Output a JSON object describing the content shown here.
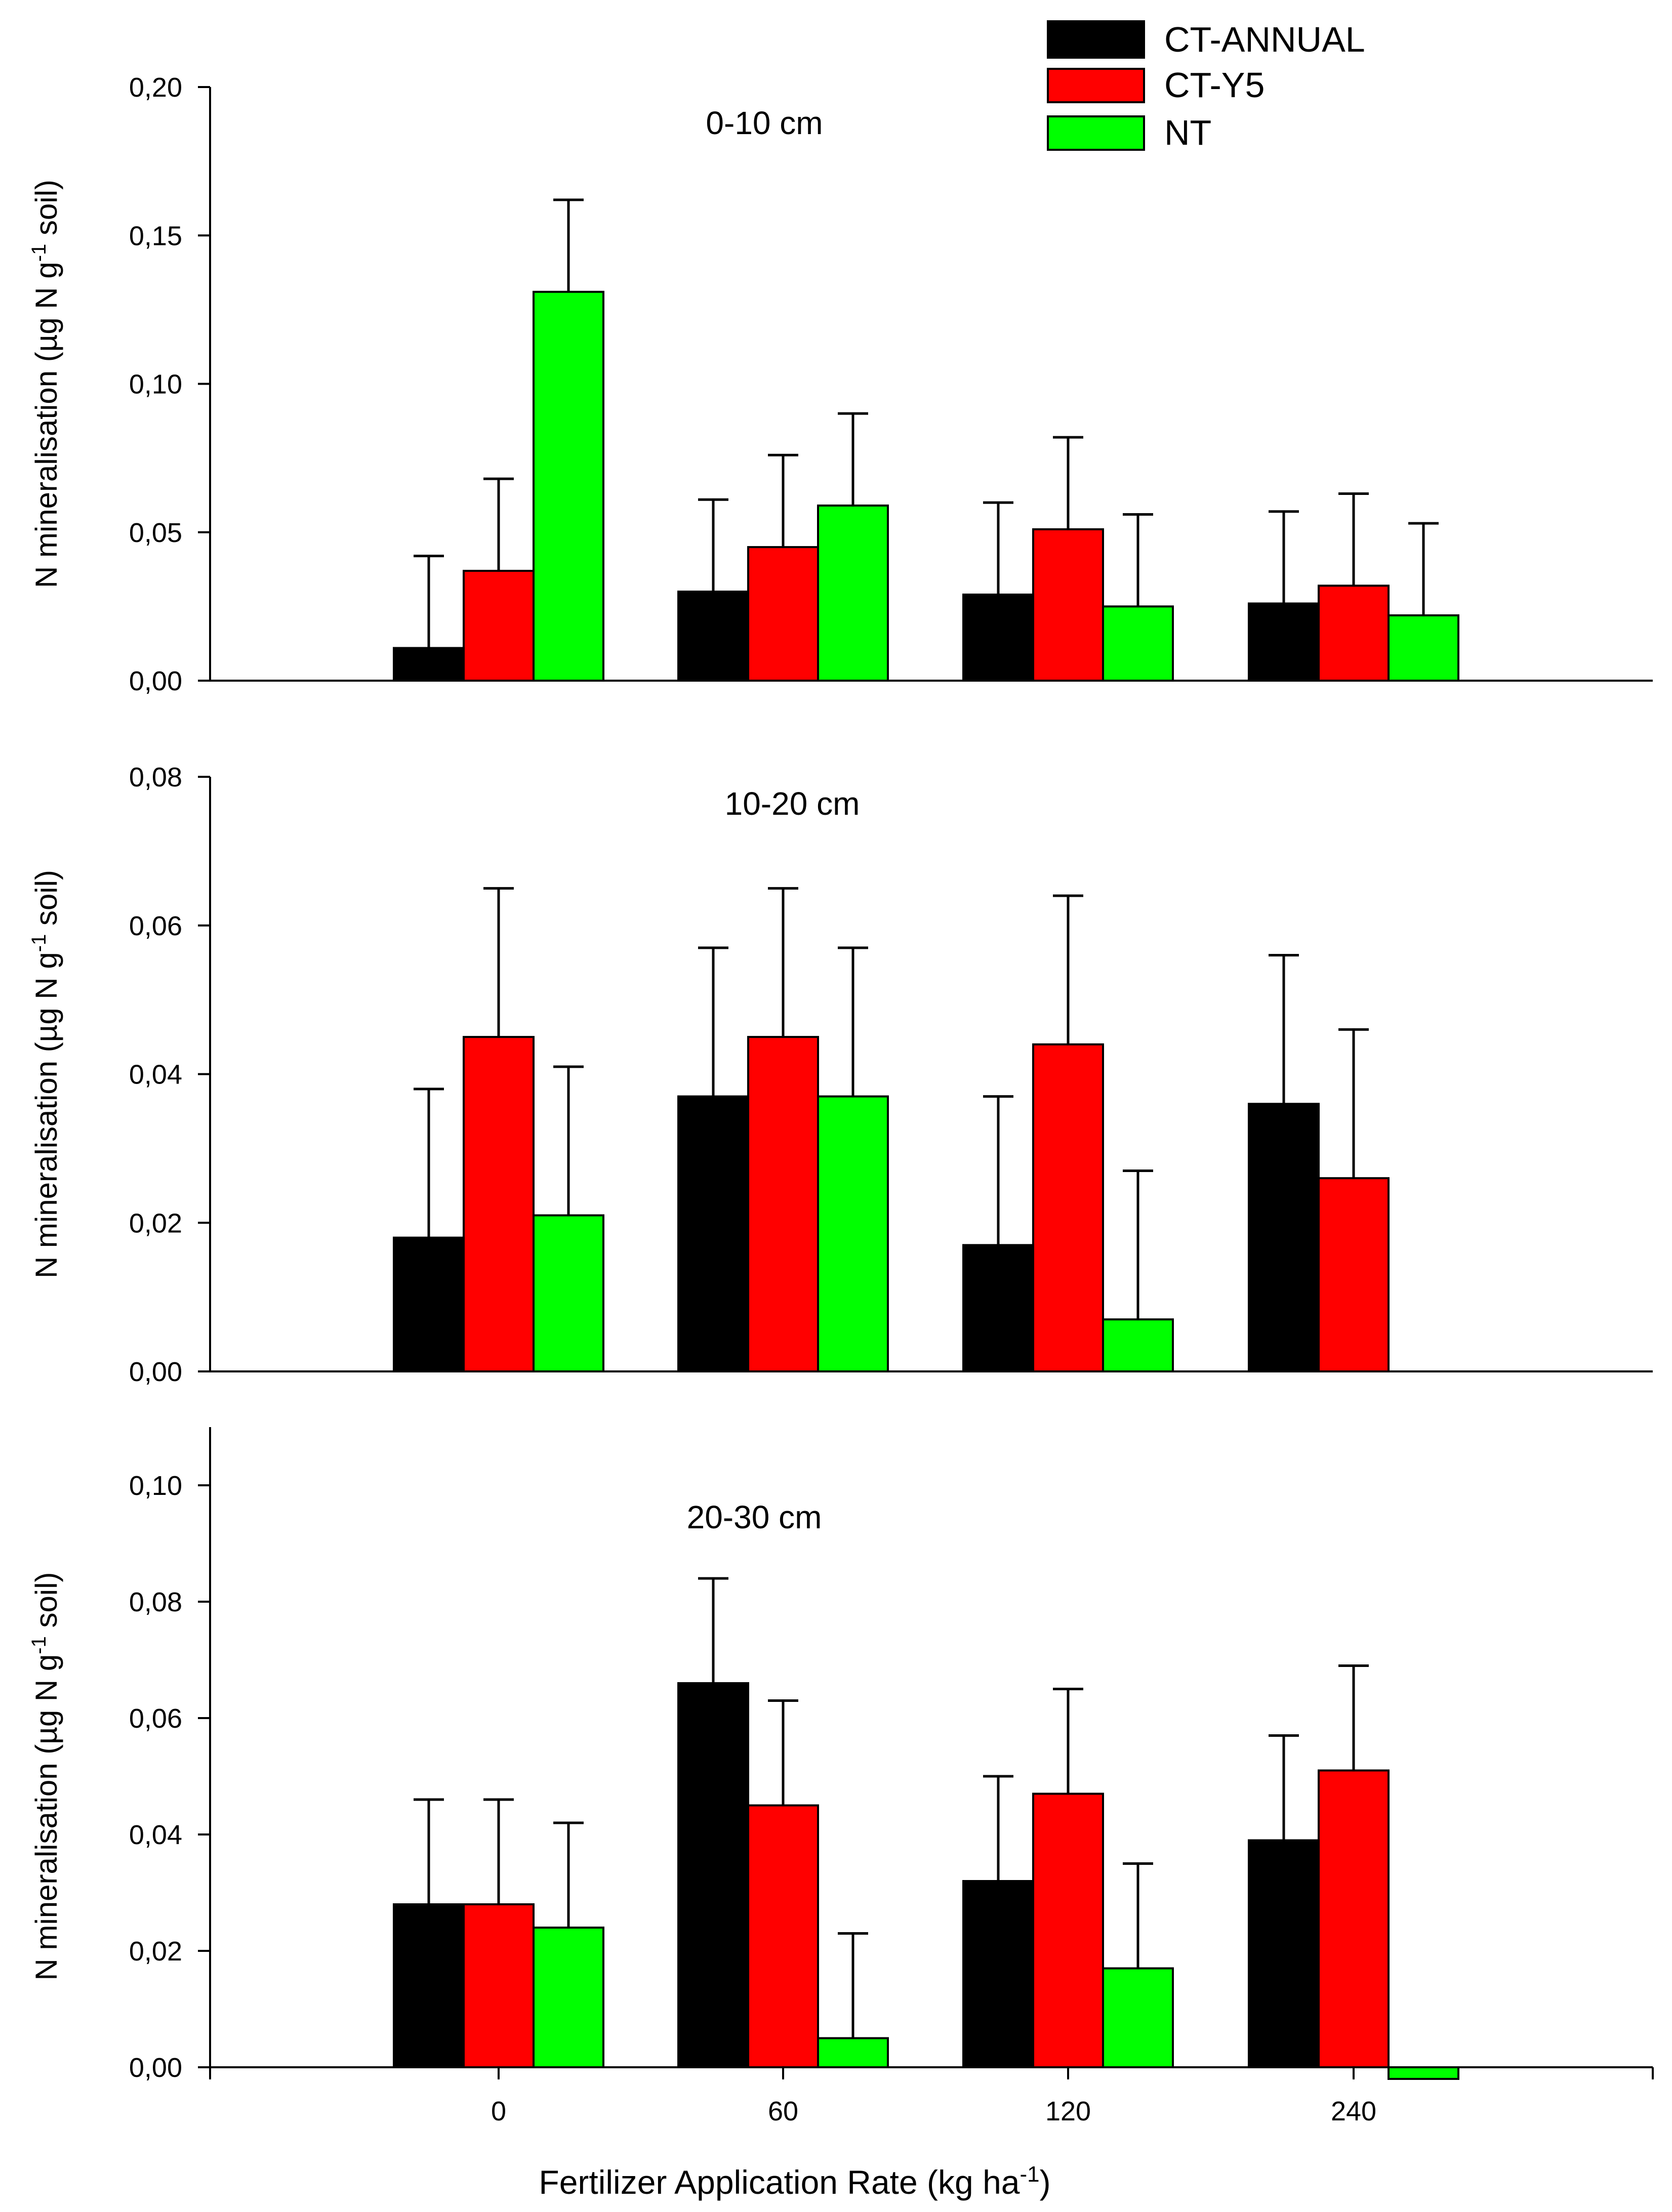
{
  "figure": {
    "xlabel": "Fertilizer Application Rate (kg ha",
    "xlabel_sup": "-1",
    "xlabel_end": ")"
  },
  "legend": [
    {
      "name": "CT-ANNUAL",
      "color": "#000000"
    },
    {
      "name": "CT-Y5",
      "color": "#ff0000"
    },
    {
      "name": "NT",
      "color": "#00ff00"
    }
  ],
  "chart_data": [
    {
      "type": "bar",
      "title": "0-10 cm",
      "ylabel": "N mineralisation (µg N g",
      "ylabel_sup": "-1",
      "ylabel_end": " soil)",
      "categories": [
        "0",
        "60",
        "120",
        "240"
      ],
      "show_xticklabels": false,
      "ylim": [
        0,
        0.2
      ],
      "yticks": [
        0,
        0.05,
        0.1,
        0.15,
        0.2
      ],
      "ytick_labels": [
        "0,00",
        "0,05",
        "0,10",
        "0,15",
        "0,20"
      ],
      "series": [
        {
          "name": "CT-ANNUAL",
          "values": [
            0.011,
            0.03,
            0.029,
            0.026
          ],
          "errors": [
            0.031,
            0.031,
            0.031,
            0.031
          ]
        },
        {
          "name": "CT-Y5",
          "values": [
            0.037,
            0.045,
            0.051,
            0.032
          ],
          "errors": [
            0.031,
            0.031,
            0.031,
            0.031
          ]
        },
        {
          "name": "NT",
          "values": [
            0.131,
            0.059,
            0.025,
            0.022
          ],
          "errors": [
            0.031,
            0.031,
            0.031,
            0.031
          ]
        }
      ]
    },
    {
      "type": "bar",
      "title": "10-20 cm",
      "ylabel": "N mineralisation (µg N g",
      "ylabel_sup": "-1",
      "ylabel_end": " soil)",
      "categories": [
        "0",
        "60",
        "120",
        "240"
      ],
      "show_xticklabels": false,
      "ylim": [
        0,
        0.08
      ],
      "yticks": [
        0,
        0.02,
        0.04,
        0.06,
        0.08
      ],
      "ytick_labels": [
        "0,00",
        "0,02",
        "0,04",
        "0,06",
        "0,08"
      ],
      "series": [
        {
          "name": "CT-ANNUAL",
          "values": [
            0.018,
            0.037,
            0.017,
            0.036
          ],
          "errors": [
            0.02,
            0.02,
            0.02,
            0.02
          ]
        },
        {
          "name": "CT-Y5",
          "values": [
            0.045,
            0.045,
            0.044,
            0.026
          ],
          "errors": [
            0.02,
            0.02,
            0.02,
            0.02
          ]
        },
        {
          "name": "NT",
          "values": [
            0.021,
            0.037,
            0.007,
            null
          ],
          "errors": [
            0.02,
            0.02,
            0.02,
            null
          ]
        }
      ]
    },
    {
      "type": "bar",
      "title": "20-30 cm",
      "ylabel": "N mineralisation (µg N g",
      "ylabel_sup": "-1",
      "ylabel_end": " soil)",
      "categories": [
        "0",
        "60",
        "120",
        "240"
      ],
      "show_xticklabels": true,
      "ylim": [
        0,
        0.11
      ],
      "yticks": [
        0,
        0.02,
        0.04,
        0.06,
        0.08,
        0.1
      ],
      "ytick_labels": [
        "0,00",
        "0,02",
        "0,04",
        "0,06",
        "0,08",
        "0,10"
      ],
      "series": [
        {
          "name": "CT-ANNUAL",
          "values": [
            0.028,
            0.066,
            0.032,
            0.039
          ],
          "errors": [
            0.018,
            0.018,
            0.018,
            0.018
          ]
        },
        {
          "name": "CT-Y5",
          "values": [
            0.028,
            0.045,
            0.047,
            0.051
          ],
          "errors": [
            0.018,
            0.018,
            0.018,
            0.018
          ]
        },
        {
          "name": "NT",
          "values": [
            0.024,
            0.005,
            0.017,
            -0.002
          ],
          "errors": [
            0.018,
            0.018,
            0.018,
            null
          ]
        }
      ]
    }
  ]
}
